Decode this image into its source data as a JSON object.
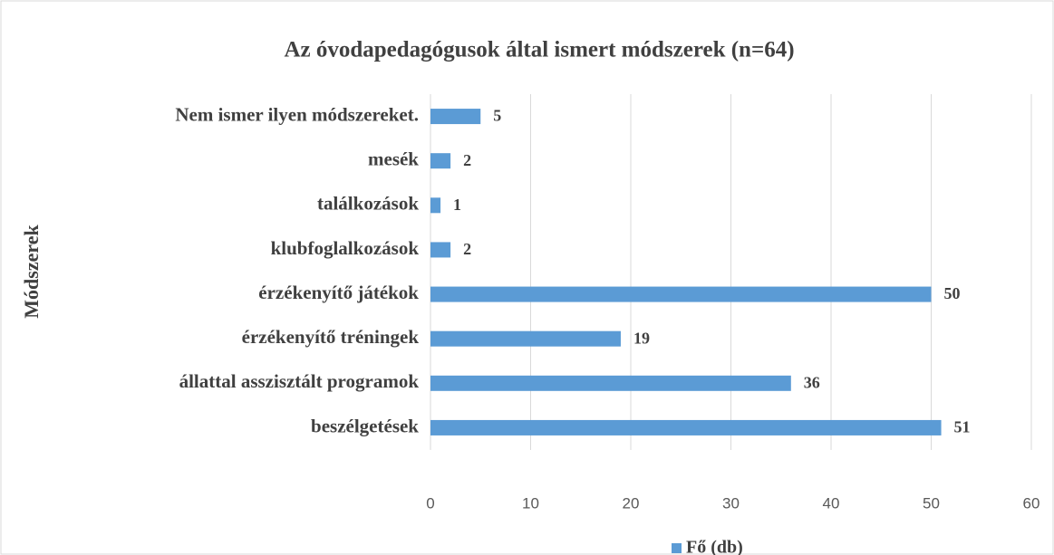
{
  "chart_data": {
    "type": "bar",
    "orientation": "horizontal",
    "title": "Az óvodapedagógusok által ismert módszerek (n=64)",
    "y_axis_label": "Módszerek",
    "categories": [
      "Nem ismer ilyen módszereket.",
      "mesék",
      "találkozások",
      "klubfoglalkozások",
      "érzékenyítő játékok",
      "érzékenyítő tréningek",
      "állattal asszisztált programok",
      "beszélgetések"
    ],
    "series": [
      {
        "name": "Fő (db)",
        "color": "#5b9bd5",
        "values": [
          5,
          2,
          1,
          2,
          50,
          19,
          36,
          51
        ]
      }
    ],
    "xlim": [
      0,
      60
    ],
    "xticks": [
      0,
      10,
      20,
      30,
      40,
      50,
      60
    ],
    "grid": true,
    "legend": "bottom"
  }
}
